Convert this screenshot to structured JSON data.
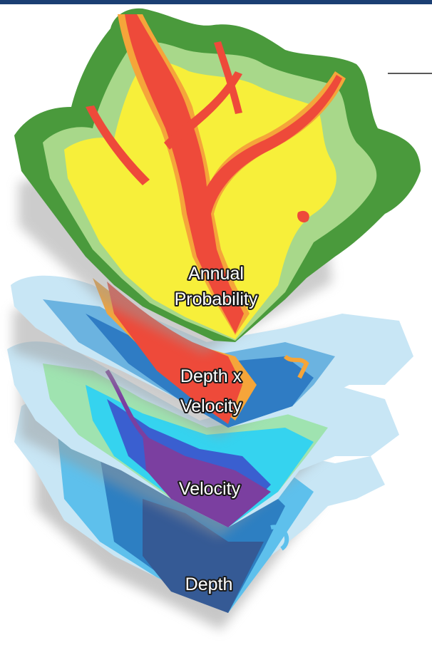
{
  "layers": [
    {
      "id": "annual-probability",
      "lines": [
        "Annual",
        "Probability"
      ]
    },
    {
      "id": "depth-x-velocity",
      "lines": [
        "Depth x",
        "Velocity"
      ]
    },
    {
      "id": "velocity",
      "lines": [
        "Velocity"
      ]
    },
    {
      "id": "depth",
      "lines": [
        "Depth"
      ]
    }
  ],
  "colors": {
    "top_bar": "#1b3f73",
    "probability": [
      "#4a9a3c",
      "#a8d88a",
      "#f7ef3a",
      "#f5a53a",
      "#ee4a3a"
    ],
    "depth_x_velocity": [
      "#c8e6f5",
      "#6bb3e0",
      "#2f7cc4",
      "#f5a53a",
      "#ee4a3a"
    ],
    "velocity": [
      "#c8e6f5",
      "#9fe3b0",
      "#35d3ef",
      "#3a5fd0",
      "#7b3fa0"
    ],
    "depth": [
      "#c8e6f5",
      "#5ec0ec",
      "#2d7fc2",
      "#355a95"
    ]
  }
}
